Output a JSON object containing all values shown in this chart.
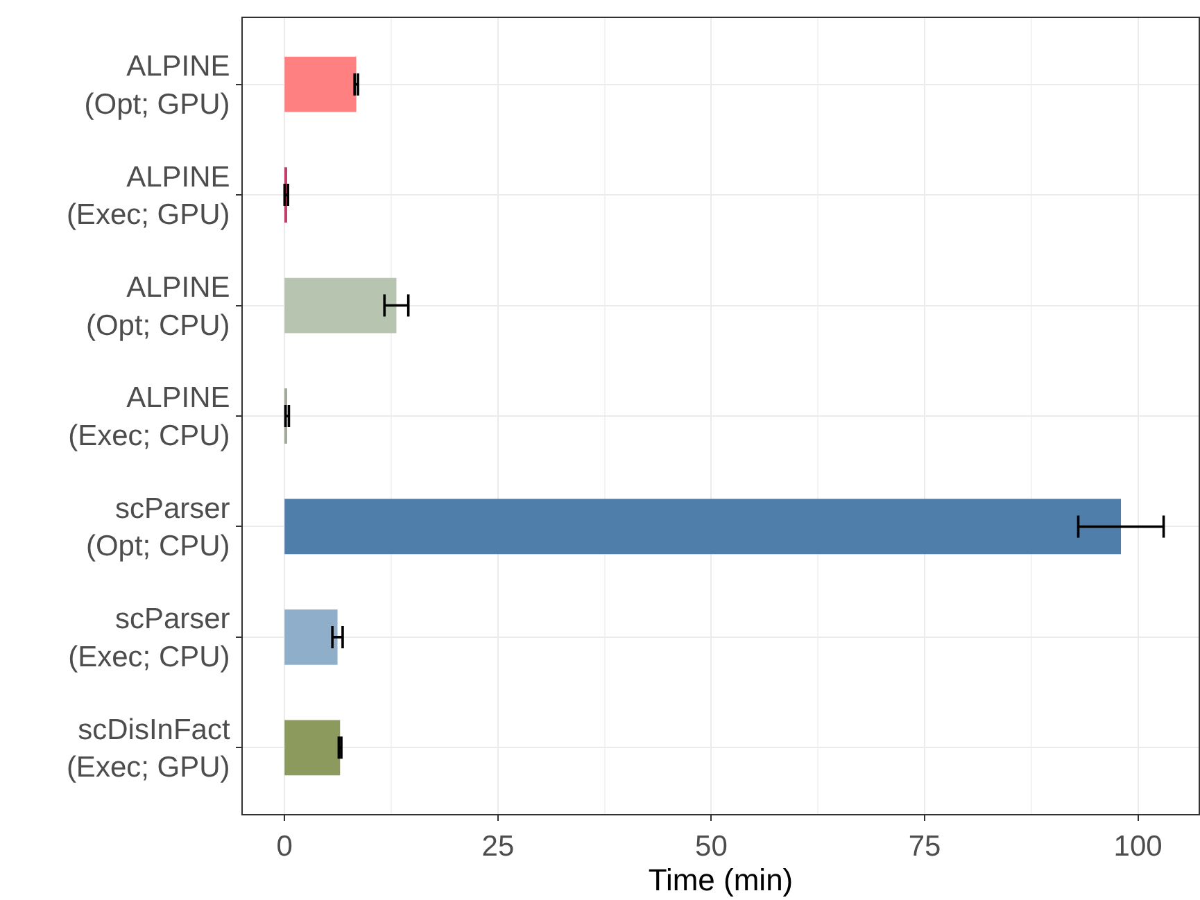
{
  "chart_data": {
    "type": "bar",
    "orientation": "horizontal",
    "xlabel": "Time (min)",
    "categories": [
      "ALPINE\n(Opt; GPU)",
      "ALPINE\n(Exec; GPU)",
      "ALPINE\n(Opt; CPU)",
      "ALPINE\n(Exec; CPU)",
      "scParser\n(Opt; CPU)",
      "scParser\n(Exec; CPU)",
      "scDisInFact\n(Exec; GPU)"
    ],
    "values": [
      8.4,
      0.2,
      13.1,
      0.3,
      98.0,
      6.2,
      6.5
    ],
    "errors": [
      0.2,
      0.2,
      1.4,
      0.2,
      5.0,
      0.6,
      0.15
    ],
    "colors": [
      "#ff8080",
      "#c0406a",
      "#b7c4b0",
      "#a3ab98",
      "#4f7eab",
      "#8eaec9",
      "#8c9a5d"
    ],
    "xlim": [
      -4.9,
      107.1
    ],
    "xticks": [
      0,
      25,
      50,
      75,
      100
    ],
    "grid": true
  }
}
